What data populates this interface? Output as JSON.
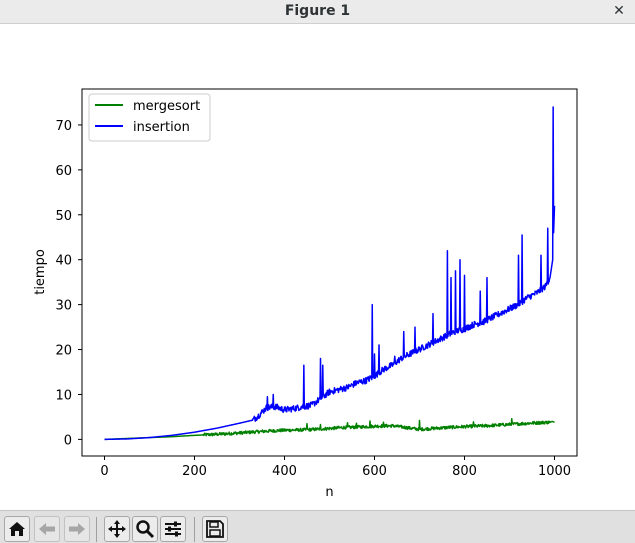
{
  "window": {
    "title": "Figure 1",
    "close_glyph": "✕"
  },
  "toolbar": {
    "buttons": [
      {
        "name": "home-icon",
        "enabled": true
      },
      {
        "name": "back-arrow-icon",
        "enabled": false
      },
      {
        "name": "forward-arrow-icon",
        "enabled": false
      },
      {
        "name": "pan-move-icon",
        "enabled": true
      },
      {
        "name": "zoom-magnifier-icon",
        "enabled": true
      },
      {
        "name": "configure-subplots-icon",
        "enabled": true
      },
      {
        "name": "save-floppy-icon",
        "enabled": true
      }
    ]
  },
  "chart_data": {
    "type": "line",
    "title": "",
    "xlabel": "n",
    "ylabel": "tiempo",
    "xlim": [
      -50,
      1050
    ],
    "ylim": [
      -3.7,
      78
    ],
    "xticks": [
      0,
      200,
      400,
      600,
      800,
      1000
    ],
    "yticks": [
      0,
      10,
      20,
      30,
      40,
      50,
      60,
      70
    ],
    "grid": false,
    "legend_position": "upper-left",
    "series": [
      {
        "name": "mergesort",
        "color": "#008000",
        "x": [
          0,
          100,
          150,
          200,
          250,
          300,
          330,
          360,
          400,
          450,
          500,
          530,
          560,
          600,
          640,
          700,
          760,
          800,
          850,
          900,
          950,
          990,
          995,
          1000
        ],
        "y": [
          0,
          0.4,
          0.6,
          0.9,
          1.1,
          1.4,
          1.6,
          1.8,
          2.0,
          2.1,
          2.4,
          2.6,
          2.7,
          2.9,
          3.0,
          2.2,
          2.6,
          2.8,
          3.0,
          3.3,
          3.6,
          3.8,
          4.0,
          3.8
        ],
        "noise_from_x": 220,
        "noise_amp": 0.7,
        "spikes": [
          [
            450,
            3.5
          ],
          [
            480,
            3.3
          ],
          [
            540,
            3.7
          ],
          [
            560,
            3.6
          ],
          [
            590,
            4.1
          ],
          [
            620,
            3.8
          ],
          [
            700,
            4.2
          ],
          [
            820,
            3.9
          ],
          [
            905,
            4.6
          ]
        ]
      },
      {
        "name": "insertion",
        "color": "#0000ff",
        "x": [
          0,
          50,
          100,
          150,
          200,
          250,
          300,
          330,
          340,
          360,
          380,
          400,
          420,
          440,
          460,
          480,
          500,
          520,
          540,
          560,
          580,
          600,
          620,
          640,
          660,
          680,
          700,
          720,
          740,
          760,
          780,
          800,
          820,
          840,
          860,
          880,
          900,
          920,
          940,
          960,
          980,
          990,
          993,
          996,
          1000
        ],
        "y": [
          0,
          0.1,
          0.4,
          0.9,
          1.6,
          2.5,
          3.6,
          4.3,
          5.0,
          7.0,
          7.2,
          6.5,
          6.8,
          7.2,
          7.5,
          9.0,
          10.5,
          11.0,
          11.5,
          12.5,
          13.0,
          14.0,
          15.5,
          16.5,
          18.0,
          19.0,
          20.0,
          21.0,
          22.0,
          23.0,
          24.0,
          24.5,
          25.5,
          26.0,
          27.0,
          28.0,
          29.0,
          30.0,
          31.5,
          32.5,
          34.0,
          36.0,
          38.0,
          40.0,
          52.0
        ],
        "noise_from_x": 330,
        "noise_amp": 1.4,
        "spikes": [
          [
            362,
            9.5
          ],
          [
            375,
            10.0
          ],
          [
            443,
            16.5
          ],
          [
            480,
            18.0
          ],
          [
            485,
            16.5
          ],
          [
            595,
            30.0
          ],
          [
            600,
            19.0
          ],
          [
            610,
            21.0
          ],
          [
            645,
            18.5
          ],
          [
            665,
            24.0
          ],
          [
            690,
            25.0
          ],
          [
            730,
            28.0
          ],
          [
            762,
            42.0
          ],
          [
            770,
            36.0
          ],
          [
            780,
            37.5
          ],
          [
            790,
            40.0
          ],
          [
            800,
            36.5
          ],
          [
            835,
            33.0
          ],
          [
            850,
            36.0
          ],
          [
            920,
            41.0
          ],
          [
            928,
            45.5
          ],
          [
            970,
            41.0
          ],
          [
            985,
            47.0
          ],
          [
            997,
            74.0
          ]
        ]
      }
    ]
  }
}
